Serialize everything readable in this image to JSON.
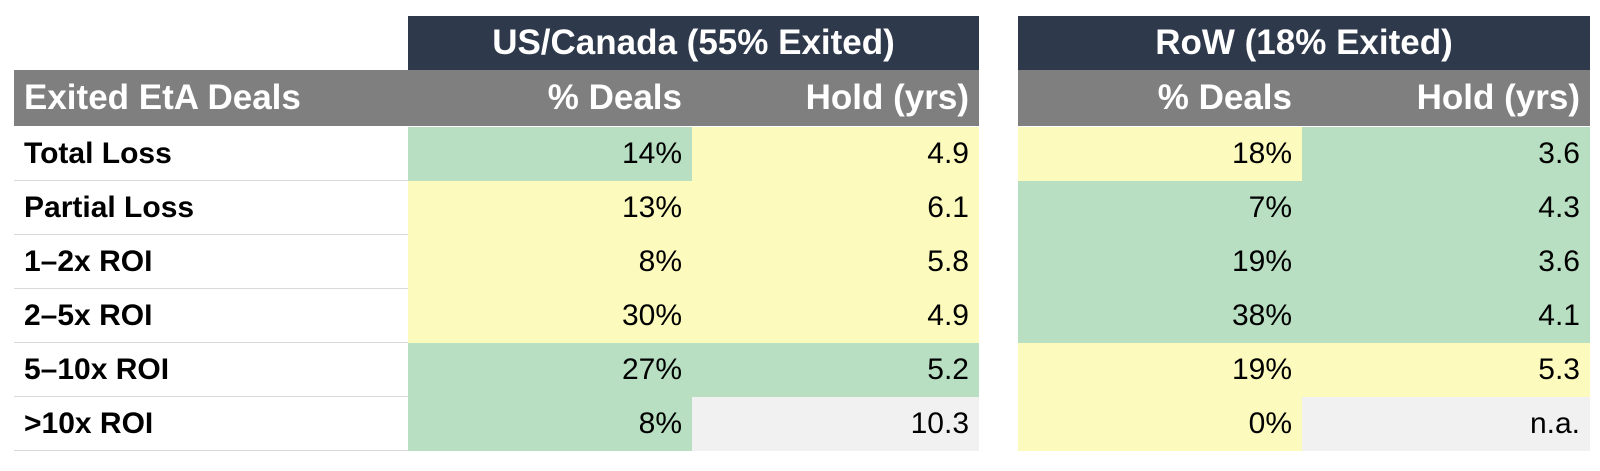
{
  "table": {
    "row_header": "Exited EtA Deals",
    "groups": [
      {
        "title": "US/Canada (55% Exited)",
        "col1": "% Deals",
        "col2": "Hold (yrs)"
      },
      {
        "title": "RoW (18% Exited)",
        "col1": "% Deals",
        "col2": "Hold (yrs)"
      }
    ],
    "rows": [
      {
        "label": "Total Loss",
        "cells": [
          "14%",
          "4.9",
          "18%",
          "3.6"
        ]
      },
      {
        "label": "Partial Loss",
        "cells": [
          "13%",
          "6.1",
          "7%",
          "4.3"
        ]
      },
      {
        "label": "1–2x ROI",
        "cells": [
          "8%",
          "5.8",
          "19%",
          "3.6"
        ]
      },
      {
        "label": "2–5x ROI",
        "cells": [
          "30%",
          "4.9",
          "38%",
          "4.1"
        ]
      },
      {
        "label": "5–10x ROI",
        "cells": [
          "27%",
          "5.2",
          "19%",
          "5.3"
        ]
      },
      {
        "label": ">10x ROI",
        "cells": [
          "8%",
          "10.3",
          "0%",
          "n.a."
        ]
      }
    ]
  },
  "colors": {
    "title_bg": "#2e3a4c",
    "header_bg": "#7f7f7f",
    "green": "#b8dfc2",
    "yellow": "#fcfbbd",
    "neutral": "#f1f1f1"
  }
}
